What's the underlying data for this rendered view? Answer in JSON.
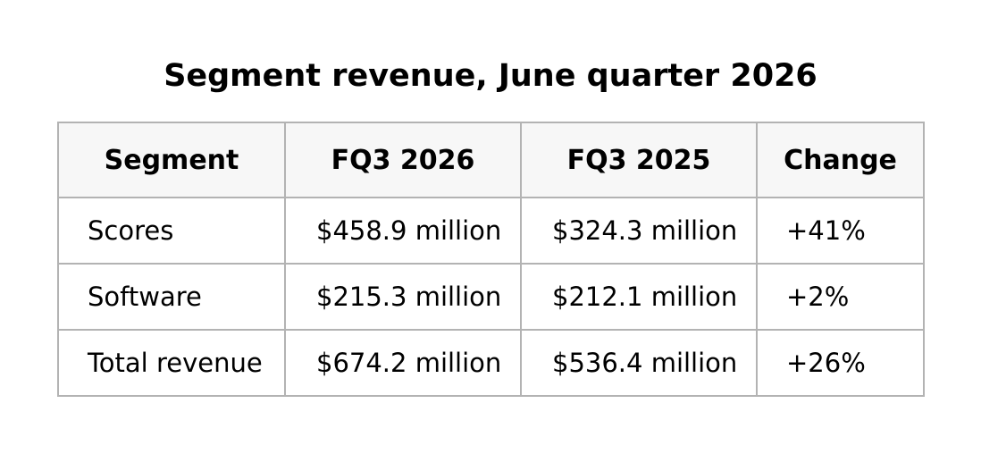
{
  "title": "Segment revenue, June quarter 2026",
  "table": {
    "headers": [
      "Segment",
      "FQ3 2026",
      "FQ3 2025",
      "Change"
    ],
    "rows": [
      [
        "Scores",
        "$458.9 million",
        "$324.3 million",
        "+41%"
      ],
      [
        "Software",
        "$215.3 million",
        "$212.1 million",
        "+2%"
      ],
      [
        "Total revenue",
        "$674.2 million",
        "$536.4 million",
        "+26%"
      ]
    ]
  }
}
